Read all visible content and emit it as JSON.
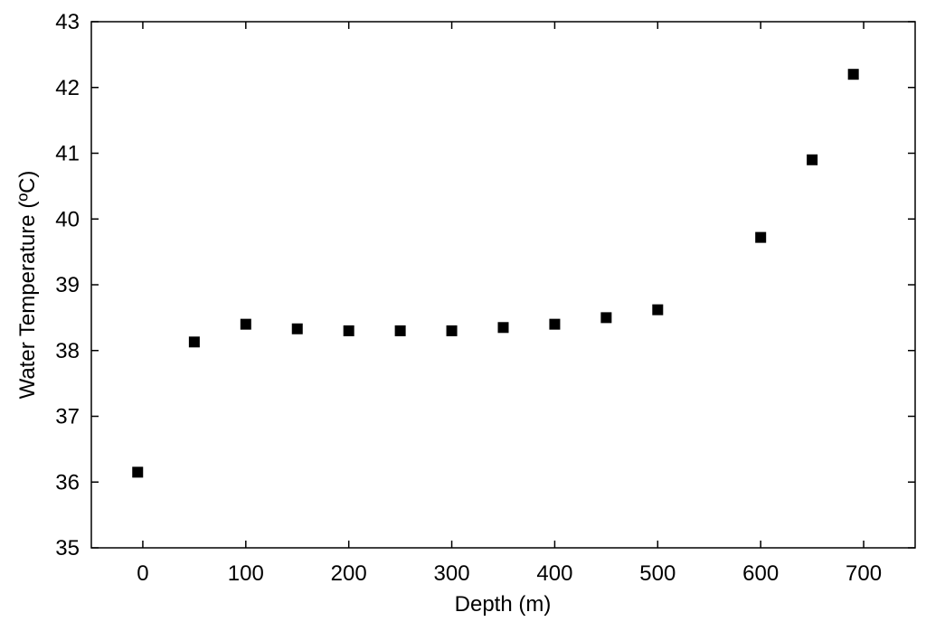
{
  "chart_data": {
    "type": "scatter",
    "title": "",
    "xlabel": "Depth (m)",
    "ylabel": "Water Temperature (ºC)",
    "xlim": [
      -50,
      750
    ],
    "ylim": [
      35,
      43
    ],
    "x_ticks": [
      0,
      100,
      200,
      300,
      400,
      500,
      600,
      700
    ],
    "y_ticks": [
      35,
      36,
      37,
      38,
      39,
      40,
      41,
      42,
      43
    ],
    "grid": false,
    "legend": "none",
    "marker": "square",
    "marker_color": "#000000",
    "series": [
      {
        "x": [
          -5,
          50,
          100,
          150,
          200,
          250,
          300,
          350,
          400,
          450,
          500,
          600,
          650,
          690
        ],
        "y": [
          36.15,
          38.13,
          38.4,
          38.33,
          38.3,
          38.3,
          38.3,
          38.35,
          38.4,
          38.5,
          38.62,
          39.72,
          40.9,
          42.2
        ]
      }
    ]
  }
}
